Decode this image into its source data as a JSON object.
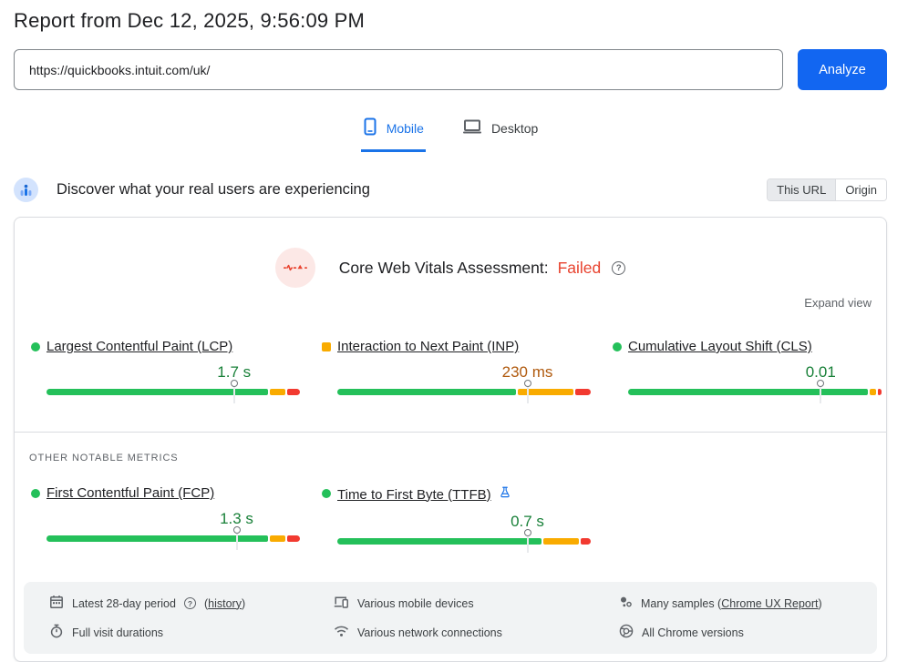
{
  "page": {
    "title": "Report from Dec 12, 2025, 9:56:09 PM"
  },
  "url_bar": {
    "value": "https://quickbooks.intuit.com/uk/",
    "analyze_label": "Analyze"
  },
  "tabs": [
    {
      "label": "Mobile",
      "active": true
    },
    {
      "label": "Desktop",
      "active": false
    }
  ],
  "field_section": {
    "heading": "Discover what your real users are experiencing",
    "toggle": {
      "options": [
        "This URL",
        "Origin"
      ],
      "selected": "This URL"
    },
    "assessment_prefix": "Core Web Vitals Assessment:",
    "assessment_status": "Failed",
    "expand_label": "Expand view",
    "other_metrics_label": "OTHER NOTABLE METRICS"
  },
  "metrics": {
    "core": [
      {
        "name": "Largest Contentful Paint (LCP)",
        "value": "1.7 s",
        "rating": "good",
        "distribution": {
          "good": 87,
          "ni": 6,
          "poor": 5
        },
        "marker_pct": 74
      },
      {
        "name": "Interaction to Next Paint (INP)",
        "value": "230 ms",
        "rating": "needs-improvement",
        "distribution": {
          "good": 70,
          "ni": 22,
          "poor": 6
        },
        "marker_pct": 75
      },
      {
        "name": "Cumulative Layout Shift (CLS)",
        "value": "0.01",
        "rating": "good",
        "distribution": {
          "good": 95,
          "ni": 2.5,
          "poor": 1.5
        },
        "marker_pct": 76
      }
    ],
    "other": [
      {
        "name": "First Contentful Paint (FCP)",
        "value": "1.3 s",
        "rating": "good",
        "distribution": {
          "good": 87,
          "ni": 6,
          "poor": 5
        },
        "marker_pct": 75
      },
      {
        "name": "Time to First Byte (TTFB)",
        "value": "0.7 s",
        "rating": "good",
        "experimental": true,
        "distribution": {
          "good": 80,
          "ni": 14,
          "poor": 4
        },
        "marker_pct": 75
      }
    ]
  },
  "footer": {
    "items": [
      {
        "icon": "calendar-icon",
        "text": "Latest 28-day period",
        "paren_open": "(",
        "link": "history",
        "paren_close": ")"
      },
      {
        "icon": "devices-icon",
        "text": "Various mobile devices"
      },
      {
        "icon": "samples-icon",
        "text": "Many samples (",
        "link": "Chrome UX Report",
        "suffix": ")"
      },
      {
        "icon": "stopwatch-icon",
        "text": "Full visit durations"
      },
      {
        "icon": "network-icon",
        "text": "Various network connections"
      },
      {
        "icon": "chrome-icon",
        "text": "All Chrome versions"
      }
    ]
  },
  "colors": {
    "accent_blue": "#1a73e8",
    "button_blue": "#1266f1",
    "failed_red": "#e8432f",
    "good_text": "#188038",
    "ni_text": "#b05a0e",
    "bar_good": "#24c05a",
    "bar_ni": "#f9ab00",
    "bar_poor": "#f23a30"
  }
}
